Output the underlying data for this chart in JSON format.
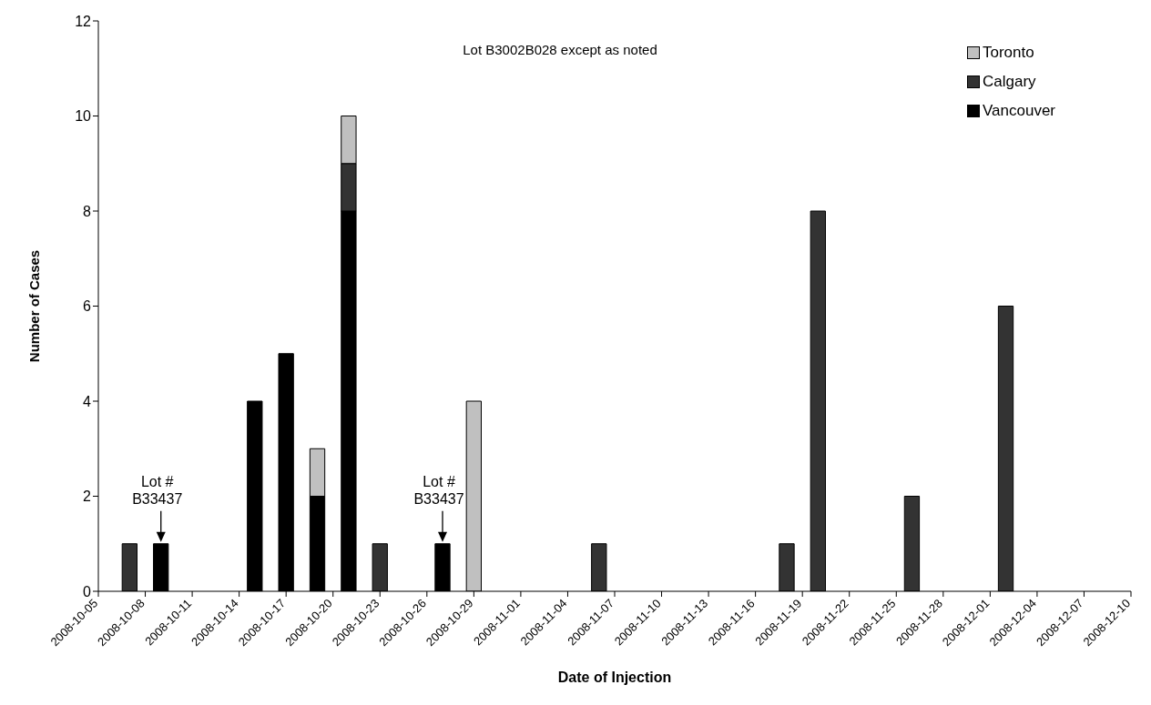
{
  "chart_data": {
    "type": "bar",
    "stacked": true,
    "xlabel": "Date of Injection",
    "ylabel": "Number of Cases",
    "x": [
      "2008-10-07",
      "2008-10-09",
      "2008-10-15",
      "2008-10-17",
      "2008-10-19",
      "2008-10-21",
      "2008-10-23",
      "2008-10-27",
      "2008-10-29",
      "2008-11-06",
      "2008-11-18",
      "2008-11-20",
      "2008-11-26",
      "2008-12-02"
    ],
    "series": [
      {
        "name": "Vancouver",
        "color": "#000000",
        "values": [
          null,
          1,
          4,
          5,
          2,
          8,
          null,
          1,
          null,
          null,
          null,
          null,
          null,
          null
        ]
      },
      {
        "name": "Calgary",
        "color": "#333333",
        "values": [
          1,
          null,
          null,
          null,
          null,
          1,
          1,
          null,
          null,
          1,
          1,
          8,
          2,
          6
        ]
      },
      {
        "name": "Toronto",
        "color": "#c0c0c0",
        "values": [
          null,
          null,
          null,
          null,
          1,
          1,
          null,
          null,
          4,
          null,
          null,
          null,
          null,
          null
        ]
      }
    ],
    "xlim": [
      "2008-10-05",
      "2008-12-10"
    ],
    "xticks": [
      "2008-10-05",
      "2008-10-08",
      "2008-10-11",
      "2008-10-14",
      "2008-10-17",
      "2008-10-20",
      "2008-10-23",
      "2008-10-26",
      "2008-10-29",
      "2008-11-01",
      "2008-11-04",
      "2008-11-07",
      "2008-11-10",
      "2008-11-13",
      "2008-11-16",
      "2008-11-19",
      "2008-11-22",
      "2008-11-25",
      "2008-11-28",
      "2008-12-01",
      "2008-12-04",
      "2008-12-07",
      "2008-12-10"
    ],
    "ylim": [
      0,
      12
    ],
    "yticks": [
      0,
      2,
      4,
      6,
      8,
      10,
      12
    ],
    "grid": false,
    "legend": "top right",
    "annotations": [
      "Lot B3002B028 except as noted",
      {
        "text": "Lot #\nB33437",
        "x": "2008-10-09",
        "y": 1
      },
      {
        "text": "Lot #\nB33437",
        "x": "2008-10-27",
        "y": 1
      }
    ]
  }
}
